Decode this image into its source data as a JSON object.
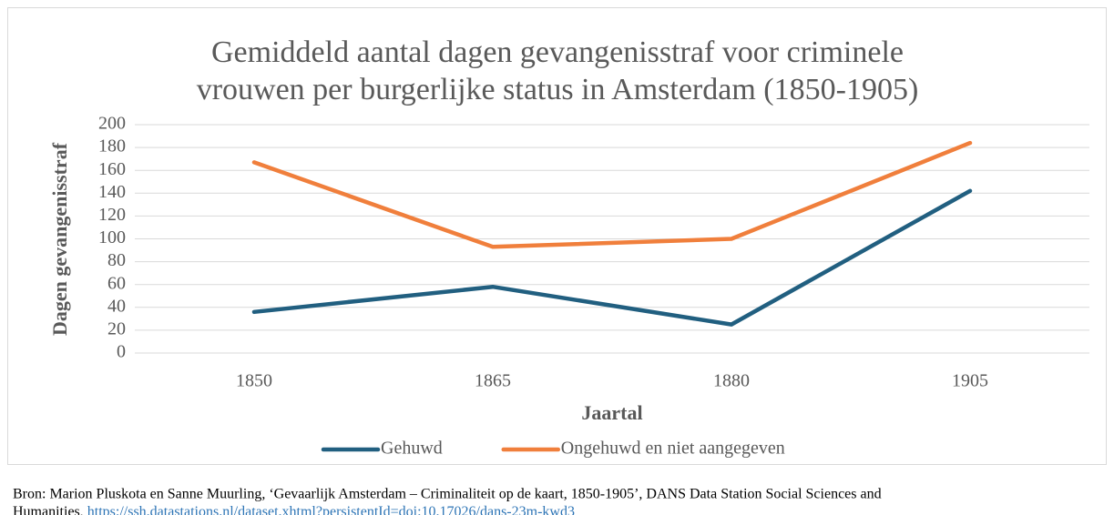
{
  "chart_data": {
    "type": "line",
    "title": [
      "Gemiddeld aantal dagen gevangenisstraf voor criminele",
      "vrouwen per burgerlijke status in Amsterdam (1850-1905)"
    ],
    "y_label": "Dagen gevangenisstraf",
    "x_label": "Jaartal",
    "categories": [
      "1850",
      "1865",
      "1880",
      "1905"
    ],
    "series": [
      {
        "name": "Gehuwd",
        "color": "#215f80",
        "values": [
          36,
          58,
          25,
          142
        ]
      },
      {
        "name": "Ongehuwd en niet aangegeven",
        "color": "#f07f3c",
        "values": [
          167,
          93,
          100,
          184
        ]
      }
    ],
    "ylim": [
      0,
      200
    ],
    "yticks": [
      0,
      20,
      40,
      60,
      80,
      100,
      120,
      140,
      160,
      180,
      200
    ],
    "grid": true,
    "legend": "bottom",
    "source": [
      "Bron: Marion Pluskota en Sanne Muurling, ‘Gevaarlijk  Amsterdam – Criminaliteit op de kaart, 1850-1905’, DANS Data Station Social Sciences and",
      "Humanities, "
    ],
    "source_link": "https://ssh.datastations.nl/dataset.xhtml?persistentId=doi:10.17026/dans-23m-kwd3"
  }
}
